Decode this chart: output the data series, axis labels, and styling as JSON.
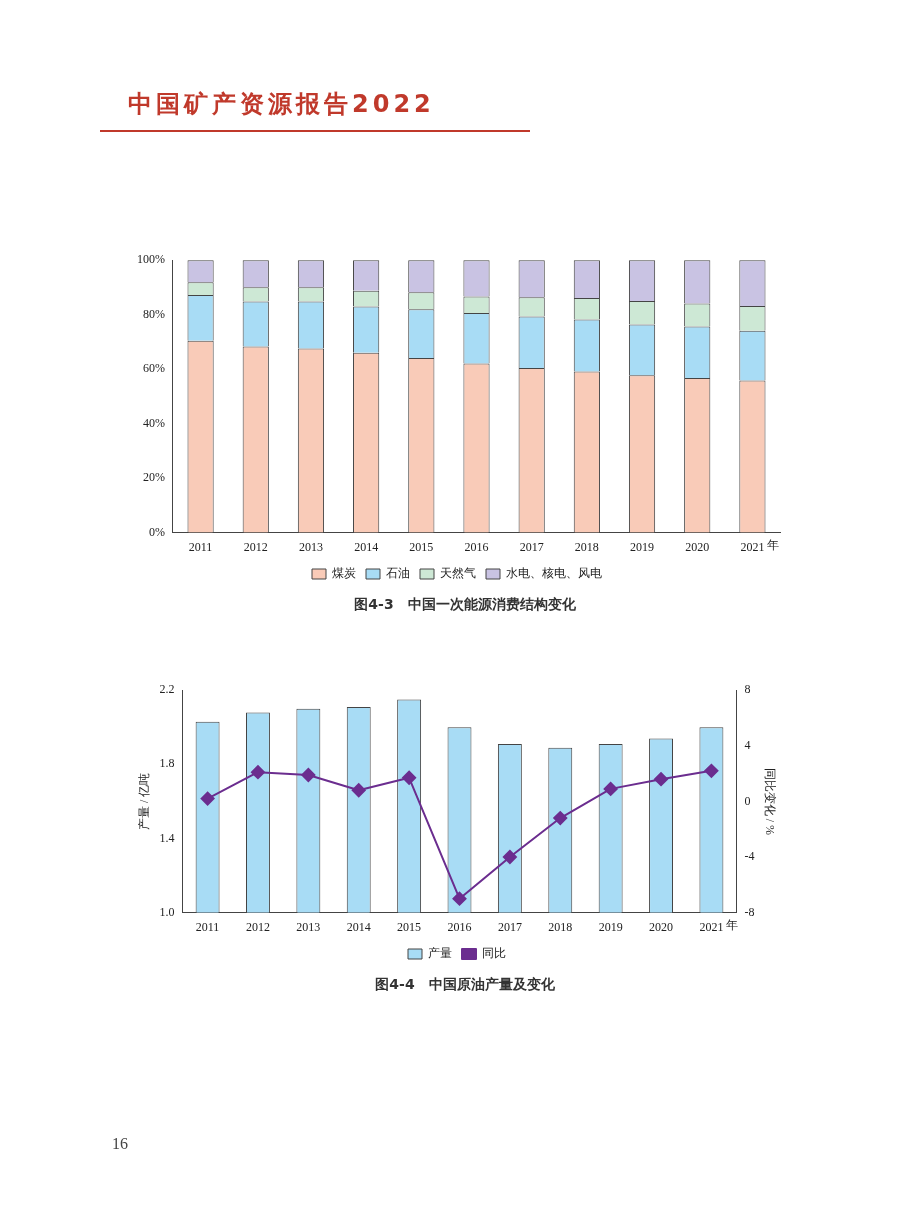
{
  "chart_data": [
    {
      "type": "bar",
      "title": "图4-3　中国一次能源消费结构变化",
      "xlabel": "年",
      "annotations": [
        "中国矿产资源报告2022"
      ],
      "stacked": true,
      "legend": "bottom",
      "grid": false,
      "categories": [
        "2011",
        "2012",
        "2013",
        "2014",
        "2015",
        "2016",
        "2017",
        "2018",
        "2019",
        "2020",
        "2021"
      ],
      "ylim": [
        0,
        100
      ],
      "yticks": [
        {
          "value": 0,
          "label": "0%"
        },
        {
          "value": 20,
          "label": "20%"
        },
        {
          "value": 40,
          "label": "40%"
        },
        {
          "value": 60,
          "label": "60%"
        },
        {
          "value": 80,
          "label": "80%"
        },
        {
          "value": 100,
          "label": "100%"
        }
      ],
      "series": [
        {
          "name": "煤炭",
          "color": "#f9cbb8",
          "values": [
            70.4,
            68.3,
            67.6,
            66.0,
            64.1,
            62.1,
            60.4,
            59.1,
            57.8,
            56.8,
            55.8
          ]
        },
        {
          "name": "石油",
          "color": "#a8dcf5",
          "values": [
            16.8,
            16.5,
            17.2,
            17.0,
            17.9,
            18.5,
            18.9,
            19.1,
            18.6,
            18.9,
            18.3
          ]
        },
        {
          "name": "天然气",
          "color": "#cde8d5",
          "values": [
            4.7,
            5.3,
            5.3,
            5.8,
            6.2,
            6.1,
            7.1,
            7.9,
            8.6,
            8.4,
            9.1
          ]
        },
        {
          "name": "水电、核电、风电",
          "color": "#c9c3e3",
          "values": [
            8.1,
            9.9,
            9.9,
            11.2,
            11.8,
            13.3,
            13.6,
            13.9,
            15.0,
            15.9,
            16.8
          ]
        }
      ]
    },
    {
      "type": "bar",
      "title": "图4-4　中国原油产量及变化",
      "xlabel": "年",
      "ylabel": "产量 / 亿吨",
      "y2label": "同比变化 / %",
      "annotations": [
        "16"
      ],
      "legend": "bottom",
      "grid": false,
      "categories": [
        "2011",
        "2012",
        "2013",
        "2014",
        "2015",
        "2016",
        "2017",
        "2018",
        "2019",
        "2020",
        "2021"
      ],
      "ylim": [
        1.0,
        2.2
      ],
      "yticks": [
        {
          "value": 1.0,
          "label": "1.0"
        },
        {
          "value": 1.4,
          "label": "1.4"
        },
        {
          "value": 1.8,
          "label": "1.8"
        },
        {
          "value": 2.2,
          "label": "2.2"
        }
      ],
      "y2lim": [
        -8,
        8
      ],
      "y2ticks": [
        -8,
        -4,
        0,
        4,
        8
      ],
      "series": [
        {
          "name": "产量",
          "type": "bar",
          "color": "#a8dcf5",
          "values": [
            2.03,
            2.08,
            2.1,
            2.11,
            2.15,
            2.0,
            1.91,
            1.89,
            1.91,
            1.94,
            2.0
          ]
        },
        {
          "name": "同比",
          "type": "line",
          "axis": "y2",
          "color": "#6b2d8f",
          "marker": "diamond",
          "values": [
            0.2,
            2.1,
            1.9,
            0.8,
            1.7,
            -7.0,
            -4.0,
            -1.2,
            0.9,
            1.6,
            2.2
          ]
        }
      ]
    }
  ]
}
